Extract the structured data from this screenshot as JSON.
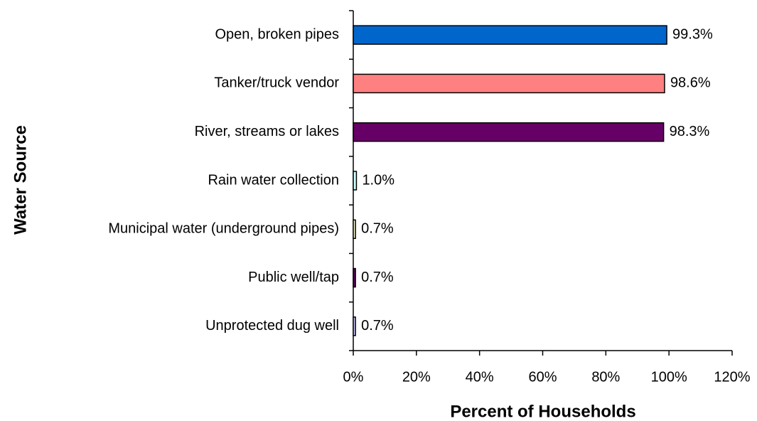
{
  "chart_data": {
    "type": "hbar",
    "xlabel": "Percent of Households",
    "ylabel": "Water Source",
    "categories": [
      "Open, broken pipes",
      "Tanker/truck vendor",
      "River, streams or lakes",
      "Rain water collection",
      "Municipal water (underground pipes)",
      "Public well/tap",
      "Unprotected dug well"
    ],
    "values": [
      99.3,
      98.6,
      98.3,
      1.0,
      0.7,
      0.7,
      0.7
    ],
    "value_labels": [
      "99.3%",
      "98.6%",
      "98.3%",
      "1.0%",
      "0.7%",
      "0.7%",
      "0.7%"
    ],
    "colors": [
      "#0066cc",
      "#ff8080",
      "#660066",
      "#ccffff",
      "#ffffcc",
      "#660066",
      "#ccccff"
    ],
    "xlim": [
      0,
      120
    ],
    "xticks": [
      {
        "value": 0,
        "label": "0%"
      },
      {
        "value": 20,
        "label": "20%"
      },
      {
        "value": 40,
        "label": "40%"
      },
      {
        "value": 60,
        "label": "60%"
      },
      {
        "value": 80,
        "label": "80%"
      },
      {
        "value": 100,
        "label": "100%"
      },
      {
        "value": 120,
        "label": "120%"
      }
    ],
    "grid": false
  }
}
